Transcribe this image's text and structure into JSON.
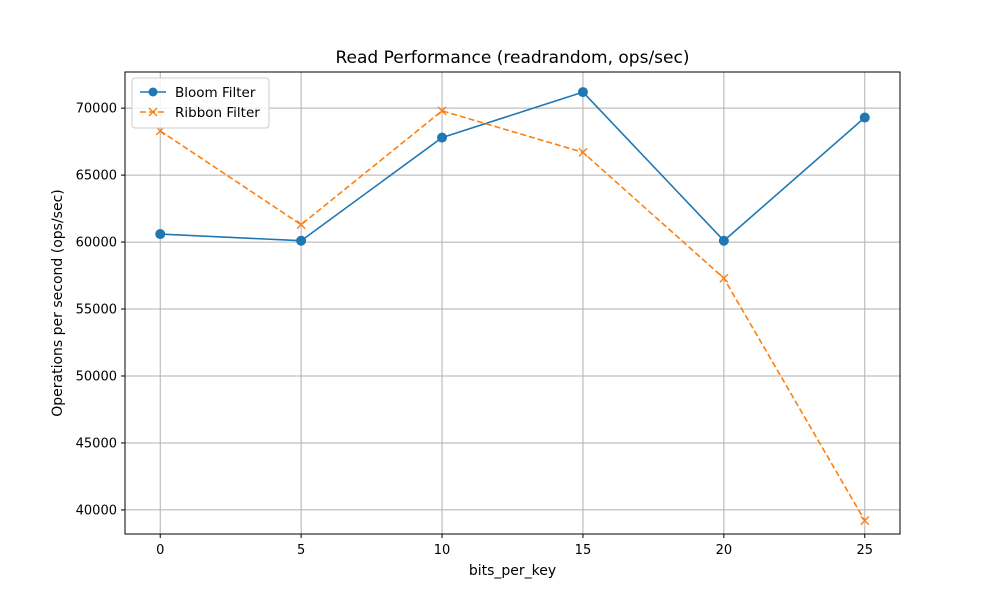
{
  "chart_data": {
    "type": "line",
    "title": "Read Performance (readrandom, ops/sec)",
    "xlabel": "bits_per_key",
    "ylabel": "Operations per second (ops/sec)",
    "x": [
      0,
      5,
      10,
      15,
      20,
      25
    ],
    "xlim": [
      -1.25,
      26.25
    ],
    "ylim": [
      38200,
      72700
    ],
    "xticks": [
      0,
      5,
      10,
      15,
      20,
      25
    ],
    "yticks": [
      40000,
      45000,
      50000,
      55000,
      60000,
      65000,
      70000
    ],
    "grid": true,
    "legend_position": "top-left",
    "series": [
      {
        "name": "Bloom Filter",
        "values": [
          60600,
          60100,
          67800,
          71200,
          60100,
          69300
        ],
        "color": "#1f77b4",
        "line_style": "solid",
        "marker": "circle"
      },
      {
        "name": "Ribbon Filter",
        "values": [
          68300,
          61300,
          69800,
          66700,
          57300,
          39200
        ],
        "color": "#ff7f0e",
        "line_style": "dashed",
        "marker": "x"
      }
    ]
  }
}
